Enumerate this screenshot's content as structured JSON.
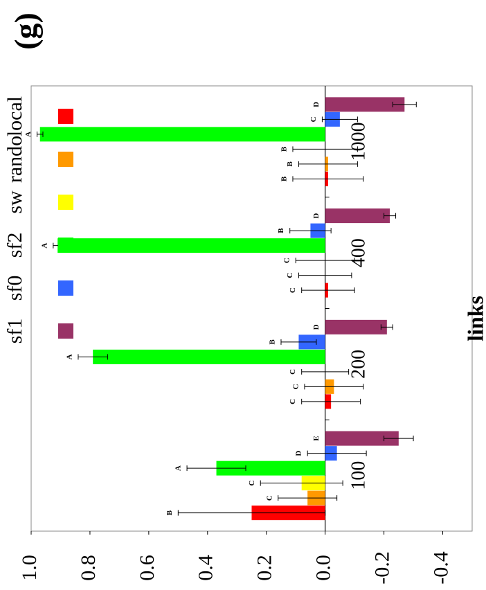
{
  "chart_data": {
    "type": "bar",
    "panel_label": "(g)",
    "x_label": "links",
    "categories": [
      "100",
      "200",
      "400",
      "1000"
    ],
    "series": [
      {
        "name": "local",
        "color": "#ff0000",
        "values": [
          0.25,
          -0.02,
          -0.01,
          -0.01
        ],
        "errors": [
          0.25,
          0.1,
          0.09,
          0.12
        ],
        "letters": [
          "B",
          "C",
          "C",
          "B"
        ]
      },
      {
        "name": "rando",
        "color": "#ff9900",
        "values": [
          0.06,
          -0.03,
          0.0,
          -0.01
        ],
        "errors": [
          0.1,
          0.1,
          0.09,
          0.1
        ],
        "letters": [
          "C",
          "C",
          "C",
          "B"
        ]
      },
      {
        "name": "sw",
        "color": "#ffff00",
        "values": [
          0.08,
          0.0,
          0.0,
          0.0
        ],
        "errors": [
          0.14,
          0.08,
          0.1,
          0.11
        ],
        "letters": [
          "C",
          "C",
          "C",
          "B"
        ]
      },
      {
        "name": "sf2",
        "color": "#00ff00",
        "values": [
          0.37,
          0.79,
          0.91,
          0.97
        ],
        "errors": [
          0.1,
          0.05,
          0.015,
          0.01
        ],
        "letters": [
          "A",
          "A",
          "A",
          "A"
        ]
      },
      {
        "name": "sf0",
        "color": "#3366ff",
        "values": [
          -0.04,
          0.09,
          0.05,
          -0.05
        ],
        "errors": [
          0.1,
          0.06,
          0.07,
          0.06
        ],
        "letters": [
          "D",
          "B",
          "B",
          "C"
        ]
      },
      {
        "name": "sf1",
        "color": "#993366",
        "values": [
          -0.25,
          -0.21,
          -0.22,
          -0.27
        ],
        "errors": [
          0.05,
          0.02,
          0.02,
          0.04
        ],
        "letters": [
          "E",
          "D",
          "D",
          "D"
        ]
      }
    ],
    "ylim": [
      -0.5,
      1.0
    ],
    "yticks": [
      {
        "value": 1,
        "label": "1.0"
      },
      0.8,
      0.6,
      0.4,
      0.2,
      {
        "value": 0,
        "label": "0.0"
      },
      -0.2,
      -0.4
    ]
  }
}
